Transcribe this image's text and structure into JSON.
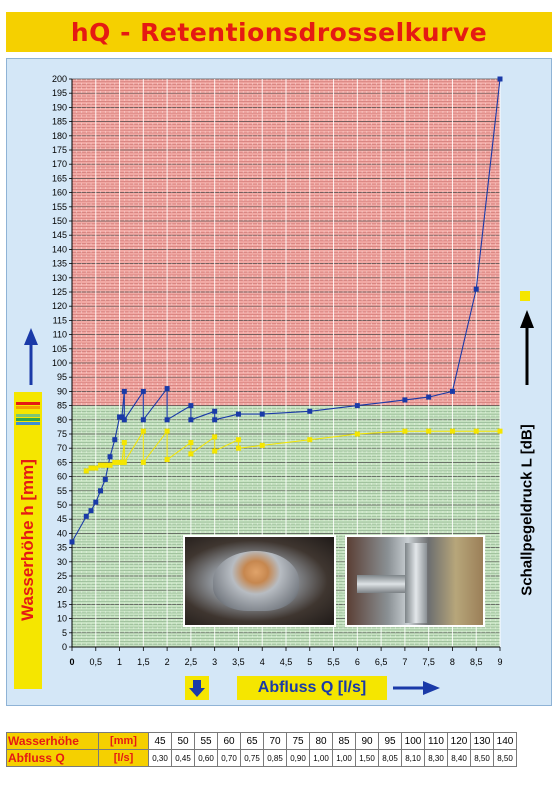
{
  "title": "hQ - Retentionsdrosselkurve",
  "chart_data": {
    "type": "line",
    "xlabel": "Abfluss Q [l/s]",
    "ylabel": "Wasserhöhe h [mm]",
    "y2label": "Schallpegeldruck L [dB]",
    "xlim": [
      0,
      9
    ],
    "ylim": [
      0,
      200
    ],
    "x_ticks": [
      "0",
      "0,5",
      "1",
      "1,5",
      "2",
      "2,5",
      "3",
      "3,5",
      "4",
      "4,5",
      "5",
      "5,5",
      "6",
      "6,5",
      "7",
      "7,5",
      "8",
      "8,5",
      "9"
    ],
    "y_ticks": [
      "0",
      "5",
      "10",
      "15",
      "20",
      "25",
      "30",
      "35",
      "40",
      "45",
      "50",
      "55",
      "60",
      "65",
      "70",
      "75",
      "80",
      "85",
      "90",
      "95",
      "100",
      "105",
      "110",
      "115",
      "120",
      "125",
      "130",
      "135",
      "140",
      "145",
      "150",
      "155",
      "160",
      "165",
      "170",
      "175",
      "180",
      "185",
      "190",
      "195",
      "200"
    ],
    "zones": [
      {
        "from": 0,
        "to": 85,
        "color": "#c7e3c2"
      },
      {
        "from": 85,
        "to": 200,
        "color": "#f2a9a4"
      }
    ],
    "series": [
      {
        "color": "#1a3aa8",
        "points": [
          [
            0,
            37
          ],
          [
            0.3,
            46
          ],
          [
            0.4,
            48
          ],
          [
            0.5,
            51
          ],
          [
            0.6,
            55
          ],
          [
            0.7,
            59
          ],
          [
            0.8,
            67
          ],
          [
            0.9,
            73
          ],
          [
            1.0,
            81
          ],
          [
            1.05,
            81
          ],
          [
            1.1,
            90
          ],
          [
            1.1,
            80
          ],
          [
            1.5,
            90
          ],
          [
            1.5,
            80
          ],
          [
            2.0,
            91
          ],
          [
            2.0,
            80
          ],
          [
            2.5,
            85
          ],
          [
            2.5,
            80
          ],
          [
            3.0,
            83
          ],
          [
            3.0,
            80
          ],
          [
            3.5,
            82
          ],
          [
            4.0,
            82
          ],
          [
            5.0,
            83
          ],
          [
            6.0,
            85
          ],
          [
            7.0,
            87
          ],
          [
            7.5,
            88
          ],
          [
            8.0,
            90
          ],
          [
            8.5,
            126
          ],
          [
            9.0,
            200
          ]
        ]
      },
      {
        "color": "#f5e600",
        "points": [
          [
            0.3,
            62
          ],
          [
            0.4,
            63
          ],
          [
            0.5,
            63
          ],
          [
            0.6,
            64
          ],
          [
            0.7,
            64
          ],
          [
            0.8,
            64
          ],
          [
            0.9,
            65
          ],
          [
            1.0,
            65
          ],
          [
            1.05,
            65
          ],
          [
            1.1,
            72
          ],
          [
            1.1,
            65
          ],
          [
            1.5,
            76
          ],
          [
            1.5,
            65
          ],
          [
            2.0,
            76
          ],
          [
            2.0,
            66
          ],
          [
            2.5,
            72
          ],
          [
            2.5,
            68
          ],
          [
            3.0,
            74
          ],
          [
            3.0,
            69
          ],
          [
            3.5,
            73
          ],
          [
            3.5,
            70
          ],
          [
            4.0,
            71
          ],
          [
            5.0,
            73
          ],
          [
            6.0,
            75
          ],
          [
            7.0,
            76
          ],
          [
            7.5,
            76
          ],
          [
            8.0,
            76
          ],
          [
            8.5,
            76
          ],
          [
            9.0,
            76
          ]
        ]
      }
    ]
  },
  "photos": {
    "left_icon": "drossel-cap-photo",
    "right_icon": "pipe-installation-photo"
  },
  "table": {
    "row1_label": "Wasserhöhe",
    "row1_unit": "[mm]",
    "row2_label": "Abfluss Q",
    "row2_unit": "[l/s]",
    "heights": [
      "45",
      "50",
      "55",
      "60",
      "65",
      "70",
      "75",
      "80",
      "85",
      "90",
      "95",
      "100",
      "110",
      "120",
      "130",
      "140"
    ],
    "flows": [
      "0,30",
      "0,45",
      "0,60",
      "0,70",
      "0,75",
      "0,85",
      "0,90",
      "1,00",
      "1,00",
      "1,50",
      "8,05",
      "8,10",
      "8,30",
      "8,40",
      "8,50",
      "8,50"
    ]
  }
}
